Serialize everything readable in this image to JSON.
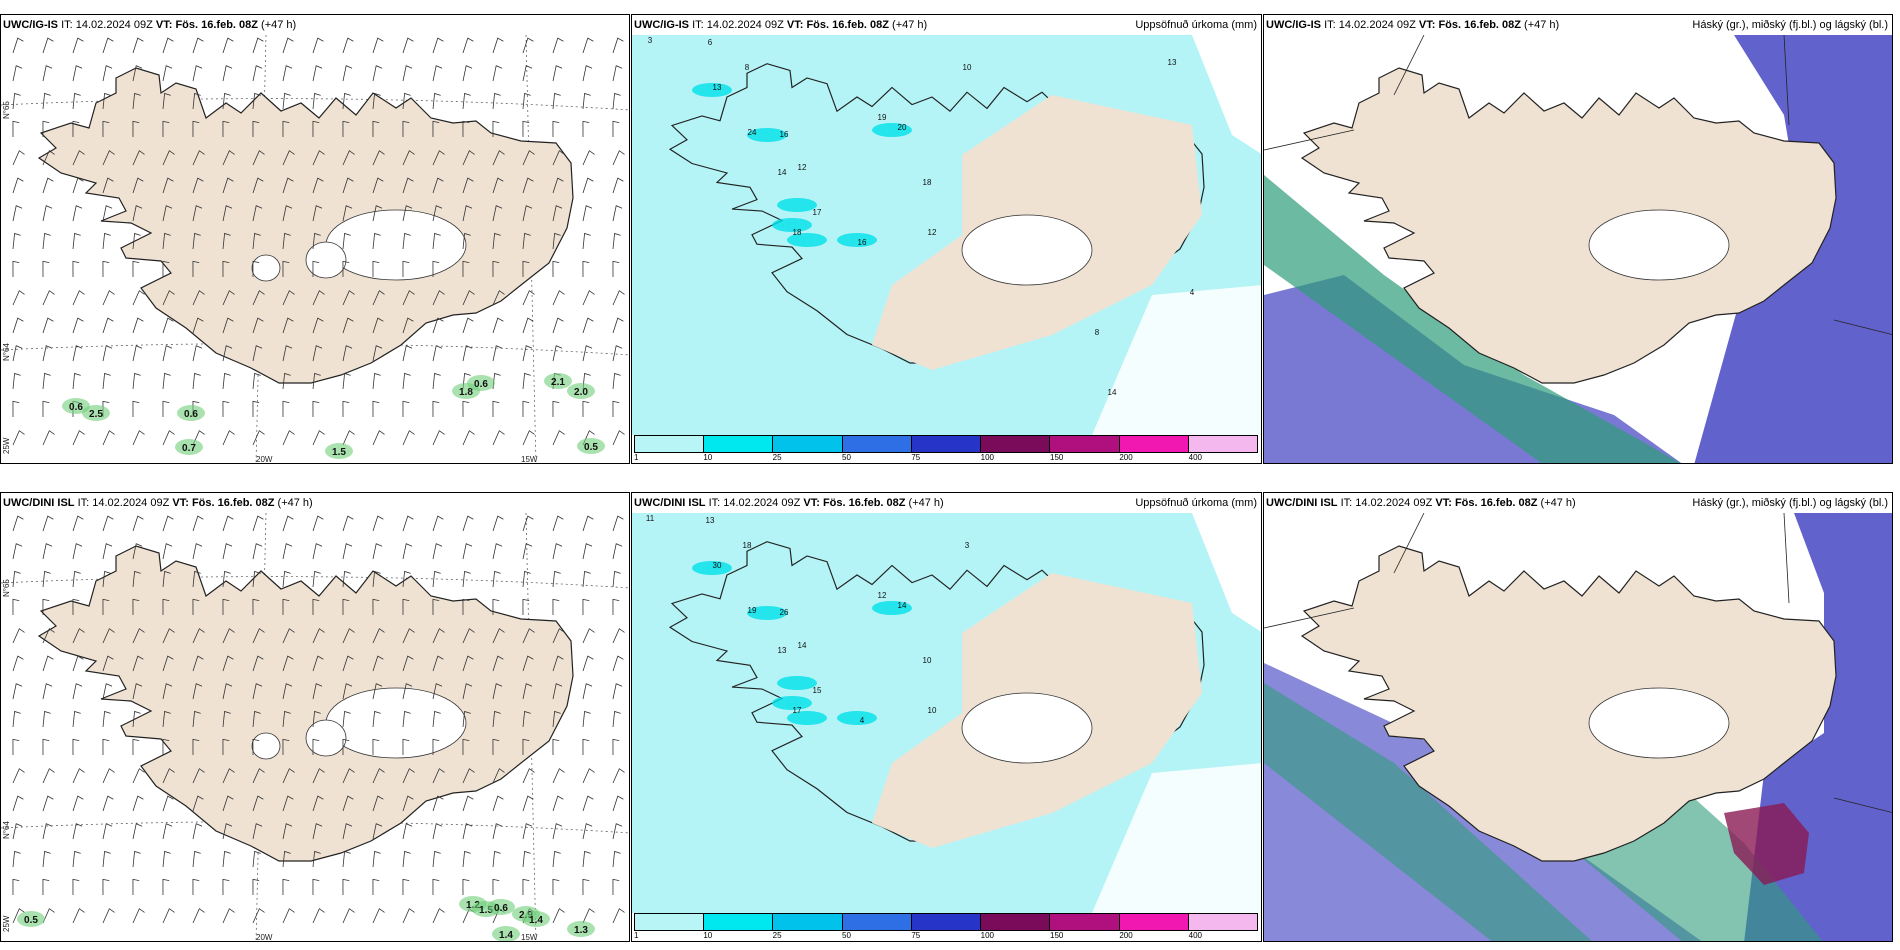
{
  "panels": {
    "top_wind": {
      "model": "UWC/IG-IS",
      "it_label": "IT:",
      "it": "14.02.2024 09Z",
      "vt_label": "VT:",
      "vt": "Fös. 16.feb. 08Z",
      "lead": "(+47 h)",
      "values": [
        "0.6",
        "2.5",
        "0.6",
        "0.7",
        "1.8",
        "0.6",
        "1.5",
        "2.1",
        "2.0",
        "0.5"
      ],
      "lat_labels": [
        "N°65",
        "N°64"
      ],
      "lon_labels": [
        "20W",
        "15W",
        "25W"
      ]
    },
    "top_precip": {
      "model": "UWC/IG-IS",
      "it_label": "IT:",
      "it": "14.02.2024 09Z",
      "vt_label": "VT:",
      "vt": "Fös. 16.feb. 08Z",
      "lead": "(+47 h)",
      "right": "Uppsöfnuð úrkoma (mm)",
      "values": [
        "3",
        "6",
        "13",
        "8",
        "24",
        "16",
        "14",
        "12",
        "18",
        "17",
        "19",
        "20",
        "18",
        "12",
        "16",
        "10",
        "13",
        "8",
        "4",
        "14"
      ]
    },
    "top_cloud": {
      "model": "UWC/IG-IS",
      "it_label": "IT:",
      "it": "14.02.2024 09Z",
      "vt_label": "VT:",
      "vt": "Fös. 16.feb. 08Z",
      "lead": "(+47 h)",
      "right": "Háský (gr.), miðský (fj.bl.) og lágský (bl.)"
    },
    "bottom_wind": {
      "model": "UWC/DINI ISL",
      "it_label": "IT:",
      "it": "14.02.2024 09Z",
      "vt_label": "VT:",
      "vt": "Fös. 16.feb. 08Z",
      "lead": "(+47 h)",
      "values": [
        "0.5",
        "1.2",
        "1.5",
        "1.4",
        "0.6",
        "2.9",
        "1.4",
        "1.3"
      ],
      "lat_labels": [
        "N°65",
        "N°64"
      ],
      "lon_labels": [
        "20W",
        "15W",
        "25W"
      ]
    },
    "bottom_precip": {
      "model": "UWC/DINI ISL",
      "it_label": "IT:",
      "it": "14.02.2024 09Z",
      "vt_label": "VT:",
      "vt": "Fös. 16.feb. 08Z",
      "lead": "(+47 h)",
      "right": "Uppsöfnuð úrkoma (mm)",
      "values": [
        "11",
        "13",
        "30",
        "18",
        "19",
        "26",
        "13",
        "14",
        "17",
        "15",
        "12",
        "14",
        "10",
        "10",
        "4",
        "3"
      ]
    },
    "bottom_cloud": {
      "model": "UWC/DINI ISL",
      "it_label": "IT:",
      "it": "14.02.2024 09Z",
      "vt_label": "VT:",
      "vt": "Fös. 16.feb. 08Z",
      "lead": "(+47 h)",
      "right": "Háský (gr.), miðský (fj.bl.) og lágský (bl.)"
    }
  },
  "legend": {
    "ticks": [
      "1",
      "10",
      "25",
      "50",
      "75",
      "100",
      "150",
      "200",
      "400"
    ],
    "colors": [
      "#b8f5f7",
      "#00e8ef",
      "#00c2ea",
      "#2e6fe6",
      "#2634c8",
      "#7a0a5a",
      "#b0107e",
      "#f018b0",
      "#f5b8ee"
    ]
  },
  "colors": {
    "land": "#efe2d3",
    "sea_precip": "#b4f4f6",
    "cloud_low": "#6262cc",
    "cloud_high": "#2f9d7a"
  }
}
